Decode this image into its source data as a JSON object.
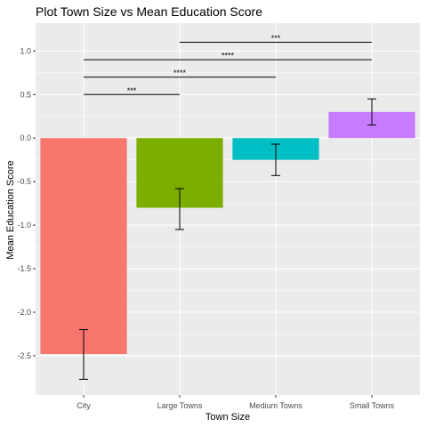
{
  "chart_data": {
    "type": "bar",
    "title": "Plot Town Size vs Mean Education Score",
    "xlabel": "Town Size",
    "ylabel": "Mean Education Score",
    "categories": [
      "City",
      "Large Towns",
      "Medium Towns",
      "Small Towns"
    ],
    "values": [
      -2.48,
      -0.8,
      -0.25,
      0.3
    ],
    "error_low": [
      -2.77,
      -1.05,
      -0.43,
      0.15
    ],
    "error_high": [
      -2.2,
      -0.58,
      -0.07,
      0.45
    ],
    "colors": [
      "#F8766D",
      "#7CAE00",
      "#00BFC4",
      "#C77CFF"
    ],
    "ylim": [
      -2.95,
      1.32
    ],
    "yticks": [
      -2.5,
      -2.0,
      -1.5,
      -1.0,
      -0.5,
      0.0,
      0.5,
      1.0
    ],
    "ytick_labels": [
      "-2.5",
      "-2.0",
      "-1.5",
      "-1.0",
      "-0.5",
      "0.0",
      "0.5",
      "1.0"
    ],
    "grid": true,
    "background": "#EBEBEB",
    "significance": [
      {
        "from": "City",
        "to": "Large Towns",
        "y": 0.5,
        "label": "***"
      },
      {
        "from": "City",
        "to": "Medium Towns",
        "y": 0.7,
        "label": "****"
      },
      {
        "from": "City",
        "to": "Small Towns",
        "y": 0.9,
        "label": "****"
      },
      {
        "from": "Large Towns",
        "to": "Small Towns",
        "y": 1.1,
        "label": "***"
      }
    ]
  }
}
